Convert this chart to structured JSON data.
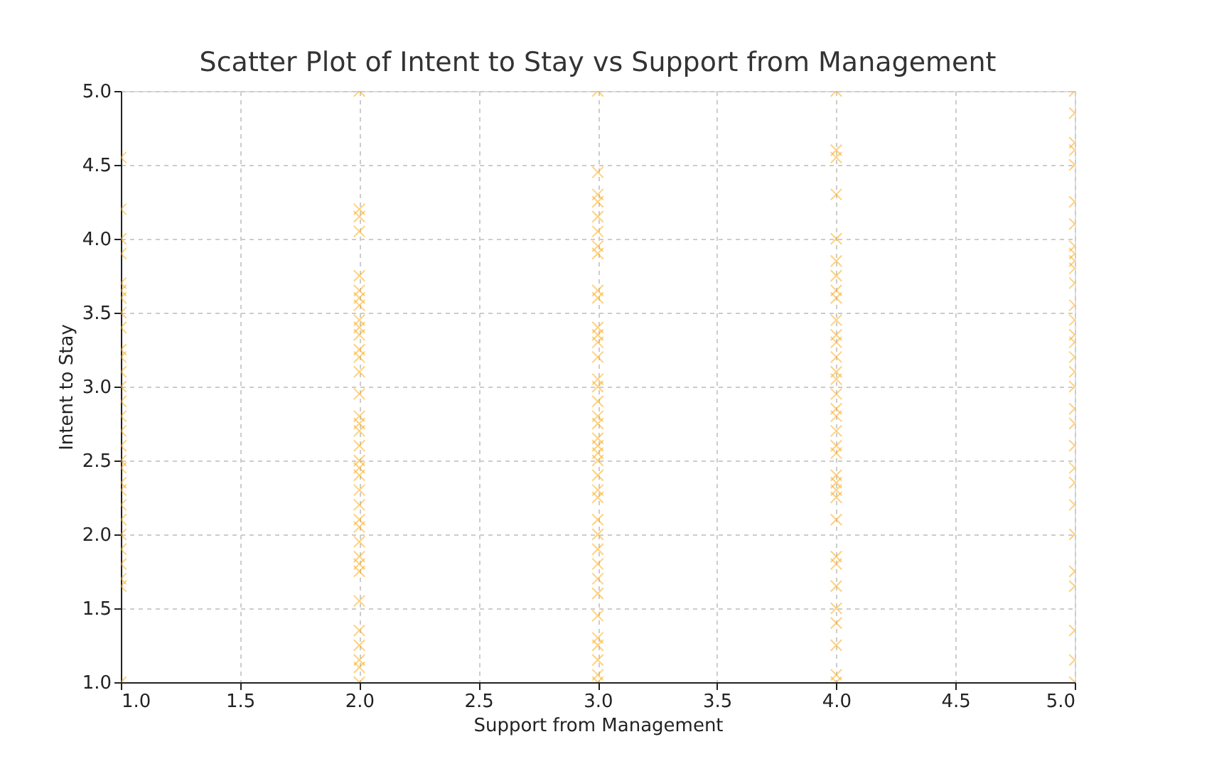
{
  "chart_data": {
    "type": "scatter",
    "title": "Scatter Plot of Intent to Stay vs Support from Management",
    "xlabel": "Support from Management",
    "ylabel": "Intent to Stay",
    "x": [
      1,
      1,
      1,
      1,
      1,
      1,
      1,
      1,
      1,
      1,
      1,
      1,
      1,
      1,
      1,
      1,
      1,
      1,
      1,
      1,
      1,
      1,
      1,
      1,
      1,
      1,
      1,
      1,
      1,
      2,
      2,
      2,
      2,
      2,
      2,
      2,
      2,
      2,
      2,
      2,
      2,
      2,
      2,
      2,
      2,
      2,
      2,
      2,
      2,
      2,
      2,
      2,
      2,
      2,
      2,
      2,
      2,
      2,
      2,
      2,
      2,
      2,
      2,
      2,
      2,
      3,
      3,
      3,
      3,
      3,
      3,
      3,
      3,
      3,
      3,
      3,
      3,
      3,
      3,
      3,
      3,
      3,
      3,
      3,
      3,
      3,
      3,
      3,
      3,
      3,
      3,
      3,
      3,
      3,
      3,
      3,
      3,
      3,
      3,
      3,
      3,
      3,
      3,
      4,
      4,
      4,
      4,
      4,
      4,
      4,
      4,
      4,
      4,
      4,
      4,
      4,
      4,
      4,
      4,
      4,
      4,
      4,
      4,
      4,
      4,
      4,
      4,
      4,
      4,
      4,
      4,
      4,
      4,
      4,
      4,
      4,
      4,
      5,
      5,
      5,
      5,
      5,
      5,
      5,
      5,
      5,
      5,
      5,
      5,
      5,
      5,
      5,
      5,
      5,
      5,
      5,
      5,
      5,
      5,
      5,
      5,
      5,
      5,
      5,
      5,
      5,
      5,
      5
    ],
    "values": [
      1.0,
      1.65,
      1.7,
      1.8,
      1.9,
      2.0,
      2.1,
      2.2,
      2.3,
      2.35,
      2.45,
      2.5,
      2.6,
      2.7,
      2.8,
      2.9,
      3.0,
      3.1,
      3.2,
      3.25,
      3.4,
      3.5,
      3.6,
      3.65,
      3.7,
      3.9,
      4.0,
      4.2,
      4.55,
      5.0,
      4.2,
      4.15,
      4.05,
      3.75,
      3.65,
      3.6,
      3.55,
      3.45,
      3.4,
      3.35,
      3.25,
      3.2,
      3.1,
      2.95,
      2.8,
      2.75,
      2.7,
      2.6,
      2.5,
      2.45,
      2.4,
      2.3,
      2.2,
      2.1,
      2.05,
      1.95,
      1.85,
      1.8,
      1.75,
      1.55,
      1.35,
      1.25,
      1.15,
      1.1,
      1.0,
      5.0,
      4.45,
      4.3,
      4.25,
      4.15,
      4.05,
      3.95,
      3.9,
      3.65,
      3.6,
      3.4,
      3.35,
      3.3,
      3.2,
      3.05,
      3.0,
      2.9,
      2.8,
      2.75,
      2.65,
      2.6,
      2.55,
      2.5,
      2.4,
      2.3,
      2.25,
      2.1,
      2.0,
      1.9,
      1.8,
      1.7,
      1.6,
      1.45,
      1.3,
      1.25,
      1.15,
      1.05,
      1.0,
      5.0,
      4.6,
      4.55,
      4.3,
      4.0,
      3.85,
      3.75,
      3.65,
      3.6,
      3.45,
      3.35,
      3.3,
      3.2,
      3.1,
      3.05,
      2.95,
      2.85,
      2.8,
      2.7,
      2.6,
      2.55,
      2.4,
      2.35,
      2.3,
      2.25,
      2.1,
      1.85,
      1.8,
      1.65,
      1.5,
      1.4,
      1.25,
      1.05,
      1.0,
      5.0,
      4.85,
      4.65,
      4.6,
      4.5,
      4.25,
      4.1,
      3.95,
      3.9,
      3.85,
      3.8,
      3.7,
      3.55,
      3.45,
      3.35,
      3.3,
      3.2,
      3.1,
      3.0,
      2.85,
      2.75,
      2.6,
      2.45,
      2.35,
      2.2,
      2.0,
      1.75,
      1.65,
      1.35,
      1.15,
      1.0
    ],
    "color": "#ffa500",
    "marker": "cross",
    "grid": true,
    "xlim": [
      1.0,
      5.0
    ],
    "xticks": [
      {
        "value": 1.0,
        "label": "1.0"
      },
      {
        "value": 1.5,
        "label": "1.5"
      },
      {
        "value": 2.0,
        "label": "2.0"
      },
      {
        "value": 2.5,
        "label": "2.5"
      },
      {
        "value": 3.0,
        "label": "3.0"
      },
      {
        "value": 3.5,
        "label": "3.5"
      },
      {
        "value": 4.0,
        "label": "4.0"
      },
      {
        "value": 4.5,
        "label": "4.5"
      },
      {
        "value": 5.0,
        "label": "5.0"
      }
    ],
    "ylim": [
      1.0,
      5.0
    ],
    "yticks": [
      {
        "value": 1.0,
        "label": "1.0"
      },
      {
        "value": 1.5,
        "label": "1.5"
      },
      {
        "value": 2.0,
        "label": "2.0"
      },
      {
        "value": 2.5,
        "label": "2.5"
      },
      {
        "value": 3.0,
        "label": "3.0"
      },
      {
        "value": 3.5,
        "label": "3.5"
      },
      {
        "value": 4.0,
        "label": "4.0"
      },
      {
        "value": 4.5,
        "label": "4.5"
      },
      {
        "value": 5.0,
        "label": "5.0"
      }
    ]
  }
}
